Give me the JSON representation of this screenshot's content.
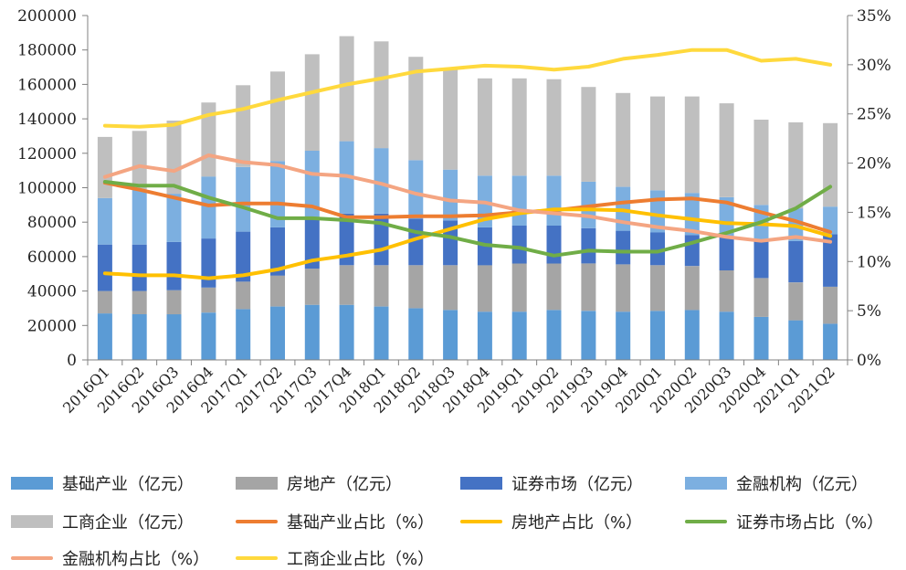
{
  "chart_data": {
    "type": "bar",
    "stacked": true,
    "categories": [
      "2016Q1",
      "2016Q2",
      "2016Q3",
      "2016Q4",
      "2017Q1",
      "2017Q2",
      "2017Q3",
      "2017Q4",
      "2018Q1",
      "2018Q2",
      "2018Q3",
      "2018Q4",
      "2019Q1",
      "2019Q2",
      "2019Q3",
      "2019Q4",
      "2020Q1",
      "2020Q2",
      "2020Q3",
      "2020Q4",
      "2021Q1",
      "2021Q2"
    ],
    "y_left": {
      "lim": [
        0,
        200000
      ],
      "ticks": [
        "0",
        "20000",
        "40000",
        "60000",
        "80000",
        "100000",
        "120000",
        "140000",
        "160000",
        "180000",
        "200000"
      ]
    },
    "y_right": {
      "lim": [
        0,
        35
      ],
      "ticks": [
        "0%",
        "5%",
        "10%",
        "15%",
        "20%",
        "25%",
        "30%",
        "35%"
      ]
    },
    "bar_series": [
      {
        "name": "基础产业（亿元）",
        "color": "#5b9bd5",
        "values": [
          27000,
          26500,
          26500,
          27500,
          29500,
          31000,
          32000,
          32000,
          31000,
          30000,
          29000,
          28000,
          28000,
          29000,
          28500,
          28000,
          28500,
          29000,
          28000,
          25000,
          23000,
          21000
        ]
      },
      {
        "name": "房地产（亿元）",
        "color": "#a5a5a5",
        "values": [
          13000,
          13500,
          14000,
          14500,
          16000,
          18000,
          21000,
          23000,
          24000,
          25000,
          26000,
          27000,
          28000,
          27000,
          27500,
          27500,
          26500,
          25500,
          24000,
          22500,
          22000,
          21500
        ]
      },
      {
        "name": "证券市场（亿元）",
        "color": "#4472c4",
        "values": [
          27000,
          27000,
          28000,
          28500,
          29000,
          28000,
          30000,
          30000,
          30000,
          27000,
          26000,
          22000,
          22000,
          22000,
          20500,
          19500,
          19000,
          18000,
          20000,
          21500,
          24000,
          30500
        ]
      },
      {
        "name": "金融机构（亿元）",
        "color": "#7cafe0",
        "values": [
          27000,
          32000,
          28000,
          36000,
          37500,
          38500,
          38500,
          42000,
          38000,
          34000,
          29500,
          30000,
          29000,
          29000,
          27000,
          25500,
          24500,
          24500,
          22500,
          21000,
          19000,
          16000
        ]
      },
      {
        "name": "工商企业（亿元）",
        "color": "#bfbfbf",
        "values": [
          35500,
          34000,
          42500,
          43000,
          47500,
          52000,
          56000,
          61000,
          62000,
          60000,
          58500,
          56500,
          56500,
          56000,
          55000,
          54500,
          54500,
          56000,
          54500,
          49500,
          50000,
          48500
        ]
      }
    ],
    "line_series": [
      {
        "name": "基础产业占比（%）",
        "color": "#ed7d31",
        "values": [
          18.0,
          17.3,
          16.5,
          15.7,
          15.9,
          15.9,
          15.6,
          14.5,
          14.5,
          14.6,
          14.6,
          14.7,
          15.0,
          15.2,
          15.6,
          16.0,
          16.3,
          16.4,
          16.0,
          15.0,
          14.1,
          13.0
        ]
      },
      {
        "name": "房地产占比（%）",
        "color": "#ffc000",
        "values": [
          8.8,
          8.6,
          8.6,
          8.3,
          8.6,
          9.2,
          10.1,
          10.6,
          11.2,
          12.3,
          13.3,
          14.3,
          14.9,
          15.3,
          15.3,
          15.2,
          14.7,
          14.3,
          13.9,
          13.8,
          13.6,
          12.6
        ]
      },
      {
        "name": "证券市场占比（%）",
        "color": "#70ad47",
        "values": [
          18.1,
          17.7,
          17.7,
          16.5,
          15.5,
          14.4,
          14.4,
          14.2,
          13.9,
          13.0,
          12.5,
          11.7,
          11.4,
          10.6,
          11.1,
          11.0,
          11.0,
          11.9,
          12.9,
          14.0,
          15.4,
          17.6
        ]
      },
      {
        "name": "金融机构占比（%）",
        "color": "#f4a582",
        "values": [
          18.6,
          19.7,
          19.2,
          20.8,
          20.1,
          19.8,
          18.9,
          18.7,
          17.9,
          16.9,
          16.2,
          16.0,
          15.2,
          14.9,
          14.6,
          14.0,
          13.5,
          13.1,
          12.5,
          12.1,
          12.5,
          12.0
        ]
      },
      {
        "name": "工商企业占比（%）",
        "color": "#ffd93d",
        "values": [
          23.8,
          23.7,
          23.9,
          24.9,
          25.5,
          26.4,
          27.2,
          28.0,
          28.6,
          29.3,
          29.6,
          29.9,
          29.8,
          29.5,
          29.8,
          30.6,
          31.0,
          31.5,
          31.5,
          30.4,
          30.6,
          30.0
        ]
      }
    ],
    "legend": {
      "row1": [
        "基础产业（亿元）",
        "房地产（亿元）",
        "证券市场（亿元）",
        "金融机构（亿元）"
      ],
      "row2": [
        "工商企业（亿元）",
        "基础产业占比（%）",
        "房地产占比（%）",
        "证券市场占比（%）"
      ],
      "row3": [
        "金融机构占比（%）",
        "工商企业占比（%）"
      ]
    },
    "legend_placement": "bottom",
    "grid": false
  }
}
